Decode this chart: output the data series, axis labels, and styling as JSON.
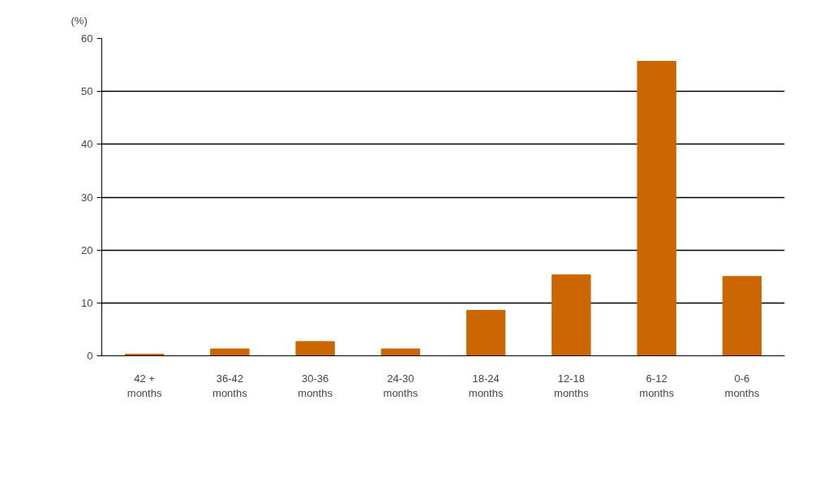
{
  "chart_data": {
    "type": "bar",
    "ylabel": "(%)",
    "categories": [
      "42 + months",
      "36-42 months",
      "30-36 months",
      "24-30 months",
      "18-24 months",
      "12-18 months",
      "6-12 months",
      "0-6 months"
    ],
    "values": [
      0.3,
      1.3,
      2.7,
      1.3,
      8.6,
      15.3,
      55.7,
      15.0
    ],
    "color": "#cc6600",
    "ylim": [
      0,
      60
    ],
    "yticks": [
      0,
      10,
      20,
      30,
      40,
      50,
      60
    ],
    "grid": "y"
  }
}
